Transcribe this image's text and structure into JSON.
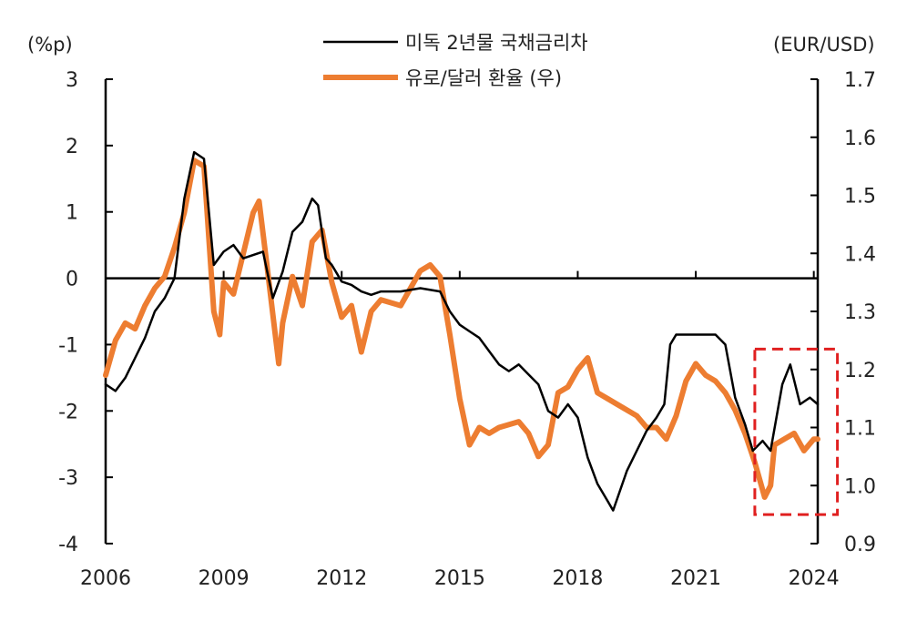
{
  "chart_data": {
    "type": "line",
    "title": "",
    "left_axis": {
      "unit_label": "(%p)",
      "ylim": [
        -4,
        3
      ],
      "ticks": [
        "3",
        "2",
        "1",
        "0",
        "-1",
        "-2",
        "-3",
        "-4"
      ]
    },
    "right_axis": {
      "unit_label": "(EUR/USD)",
      "ylim": [
        0.9,
        1.7
      ],
      "ticks": [
        "1.7",
        "1.6",
        "1.5",
        "1.4",
        "1.3",
        "1.2",
        "1.1",
        "1.0",
        "0.9"
      ]
    },
    "x_axis": {
      "range": [
        2006,
        2024.1
      ],
      "ticks": [
        "2006",
        "2009",
        "2012",
        "2015",
        "2018",
        "2021",
        "2024"
      ]
    },
    "legend_position": "top-center",
    "colors": {
      "spread": "#000000",
      "eurusd": "#ed7d31",
      "highlight_box": "#e02020"
    },
    "highlight_box": {
      "x_range": [
        2022.5,
        2024.6
      ],
      "y_right_range": [
        0.95,
        1.235
      ]
    },
    "series": [
      {
        "name": "미독 2년물 국채금리차",
        "axis": "left",
        "x": [
          2006.0,
          2006.25,
          2006.5,
          2006.75,
          2007.0,
          2007.25,
          2007.5,
          2007.75,
          2008.0,
          2008.25,
          2008.5,
          2008.75,
          2009.0,
          2009.25,
          2009.5,
          2009.75,
          2010.0,
          2010.25,
          2010.5,
          2010.75,
          2011.0,
          2011.25,
          2011.4,
          2011.6,
          2011.75,
          2012.0,
          2012.25,
          2012.5,
          2012.75,
          2013.0,
          2013.5,
          2014.0,
          2014.5,
          2014.75,
          2015.0,
          2015.25,
          2015.5,
          2015.75,
          2016.0,
          2016.25,
          2016.5,
          2016.75,
          2017.0,
          2017.25,
          2017.5,
          2017.75,
          2018.0,
          2018.25,
          2018.5,
          2018.75,
          2018.9,
          2019.25,
          2019.5,
          2019.75,
          2020.0,
          2020.2,
          2020.35,
          2020.5,
          2021.0,
          2021.5,
          2021.75,
          2022.0,
          2022.25,
          2022.45,
          2022.7,
          2022.9,
          2023.2,
          2023.4,
          2023.65,
          2023.9,
          2024.1
        ],
        "values": [
          -1.6,
          -1.7,
          -1.5,
          -1.2,
          -0.9,
          -0.5,
          -0.3,
          0.0,
          1.2,
          1.9,
          1.8,
          0.2,
          0.4,
          0.5,
          0.3,
          0.35,
          0.4,
          -0.3,
          0.1,
          0.7,
          0.85,
          1.2,
          1.1,
          0.3,
          0.2,
          -0.05,
          -0.1,
          -0.2,
          -0.25,
          -0.2,
          -0.2,
          -0.15,
          -0.2,
          -0.5,
          -0.7,
          -0.8,
          -0.9,
          -1.1,
          -1.3,
          -1.4,
          -1.3,
          -1.45,
          -1.6,
          -2.0,
          -2.1,
          -1.9,
          -2.1,
          -2.7,
          -3.1,
          -3.35,
          -3.5,
          -2.9,
          -2.6,
          -2.3,
          -2.1,
          -1.9,
          -1.0,
          -0.85,
          -0.85,
          -0.85,
          -1.0,
          -1.8,
          -2.2,
          -2.6,
          -2.45,
          -2.6,
          -1.6,
          -1.3,
          -1.9,
          -1.8,
          -1.9
        ]
      },
      {
        "name": "유로/달러 환율 (우)",
        "axis": "right",
        "x": [
          2006.0,
          2006.25,
          2006.5,
          2006.75,
          2007.0,
          2007.25,
          2007.5,
          2007.75,
          2008.0,
          2008.25,
          2008.5,
          2008.75,
          2008.9,
          2009.0,
          2009.25,
          2009.5,
          2009.75,
          2009.9,
          2010.1,
          2010.4,
          2010.5,
          2010.75,
          2011.0,
          2011.25,
          2011.5,
          2011.75,
          2012.0,
          2012.25,
          2012.5,
          2012.75,
          2013.0,
          2013.5,
          2014.0,
          2014.25,
          2014.5,
          2014.75,
          2015.0,
          2015.25,
          2015.5,
          2015.75,
          2016.0,
          2016.5,
          2016.75,
          2017.0,
          2017.25,
          2017.5,
          2017.75,
          2018.0,
          2018.25,
          2018.5,
          2018.75,
          2019.0,
          2019.5,
          2019.75,
          2020.0,
          2020.25,
          2020.5,
          2020.75,
          2021.0,
          2021.25,
          2021.5,
          2021.75,
          2022.0,
          2022.25,
          2022.5,
          2022.75,
          2022.9,
          2023.0,
          2023.25,
          2023.5,
          2023.75,
          2024.0,
          2024.1
        ],
        "values": [
          1.19,
          1.25,
          1.28,
          1.27,
          1.31,
          1.34,
          1.36,
          1.41,
          1.47,
          1.56,
          1.55,
          1.3,
          1.26,
          1.35,
          1.33,
          1.4,
          1.47,
          1.49,
          1.38,
          1.21,
          1.28,
          1.36,
          1.31,
          1.42,
          1.44,
          1.35,
          1.29,
          1.31,
          1.23,
          1.3,
          1.32,
          1.31,
          1.37,
          1.38,
          1.36,
          1.26,
          1.15,
          1.07,
          1.1,
          1.09,
          1.1,
          1.11,
          1.09,
          1.05,
          1.07,
          1.16,
          1.17,
          1.2,
          1.22,
          1.16,
          1.15,
          1.14,
          1.12,
          1.1,
          1.1,
          1.08,
          1.12,
          1.18,
          1.21,
          1.19,
          1.18,
          1.16,
          1.13,
          1.09,
          1.04,
          0.98,
          1.0,
          1.07,
          1.08,
          1.09,
          1.06,
          1.08,
          1.08
        ]
      }
    ]
  }
}
